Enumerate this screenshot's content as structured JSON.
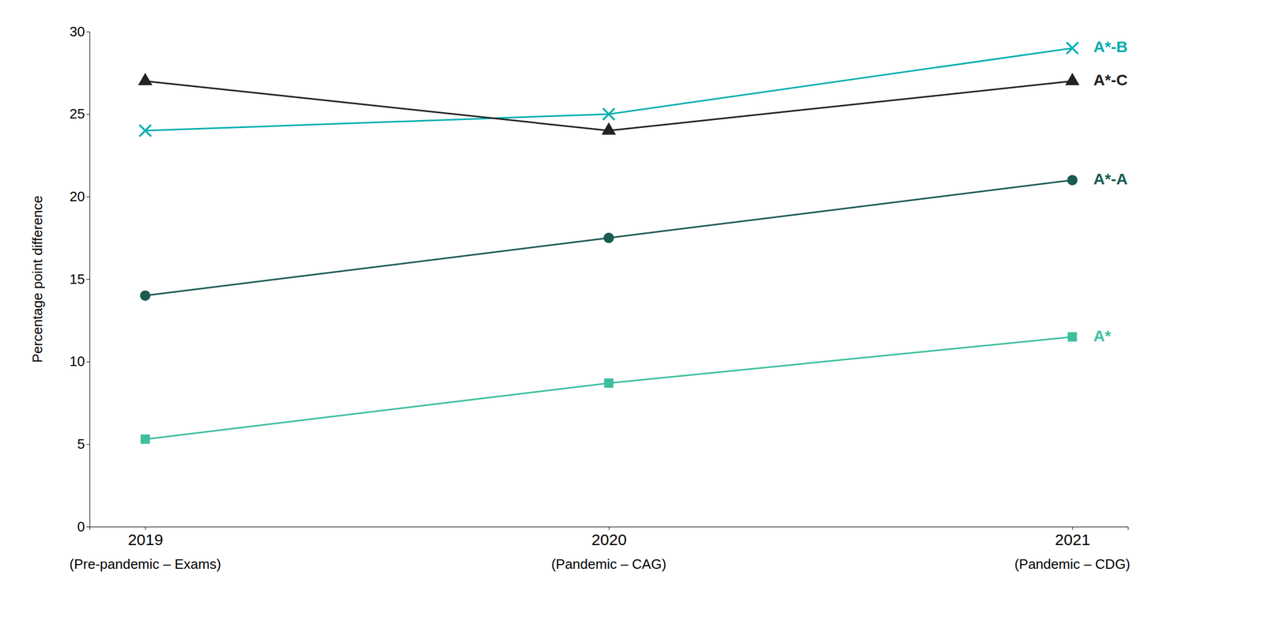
{
  "chart_data": {
    "type": "line",
    "categories": [
      "2019",
      "2020",
      "2021"
    ],
    "category_sublabels": [
      "(Pre-pandemic – Exams)",
      "(Pandemic – CAG)",
      "(Pandemic – CDG)"
    ],
    "ylabel": "Percentage point difference",
    "series": [
      {
        "name": "A*-B",
        "color": "#00AEAE",
        "marker": "x",
        "values": [
          24.0,
          25.0,
          29.0
        ]
      },
      {
        "name": "A*-C",
        "color": "#222222",
        "marker": "triangle",
        "values": [
          27.0,
          24.0,
          27.0
        ]
      },
      {
        "name": "A*-A",
        "color": "#1a5c52",
        "marker": "circle",
        "values": [
          14.0,
          17.5,
          21.0
        ]
      },
      {
        "name": "A*",
        "color": "#3dbf9f",
        "marker": "square",
        "values": [
          5.3,
          8.7,
          11.5
        ]
      }
    ],
    "ylim": [
      0,
      30
    ],
    "yticks": [
      0,
      5,
      10,
      15,
      20,
      25,
      30
    ],
    "legend": "right",
    "grid": false
  }
}
